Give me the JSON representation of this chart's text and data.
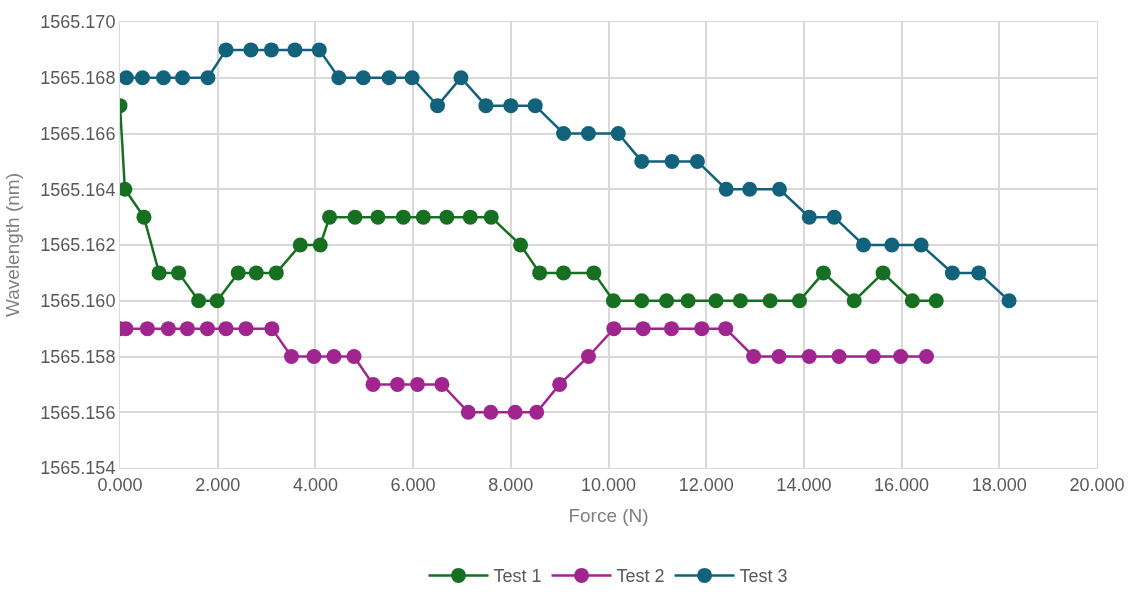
{
  "chart_data": {
    "type": "line",
    "xlabel": "Force (N)",
    "ylabel": "Wavelength (nm)",
    "xlim": [
      0,
      20
    ],
    "xticks": [
      {
        "value": 0,
        "label": "0.000"
      },
      {
        "value": 2,
        "label": "2.000"
      },
      {
        "value": 4,
        "label": "4.000"
      },
      {
        "value": 6,
        "label": "6.000"
      },
      {
        "value": 8,
        "label": "8.000"
      },
      {
        "value": 10,
        "label": "10.000"
      },
      {
        "value": 12,
        "label": "12.000"
      },
      {
        "value": 14,
        "label": "14.000"
      },
      {
        "value": 16,
        "label": "16.000"
      },
      {
        "value": 18,
        "label": "18.000"
      },
      {
        "value": 20,
        "label": "20.000"
      }
    ],
    "ylim": [
      1565.154,
      1565.17
    ],
    "yticks": [
      {
        "value": 1565.154,
        "label": "1565.154"
      },
      {
        "value": 1565.156,
        "label": "1565.156"
      },
      {
        "value": 1565.158,
        "label": "1565.158"
      },
      {
        "value": 1565.16,
        "label": "1565.160"
      },
      {
        "value": 1565.162,
        "label": "1565.162"
      },
      {
        "value": 1565.164,
        "label": "1565.164"
      },
      {
        "value": 1565.166,
        "label": "1565.166"
      },
      {
        "value": 1565.168,
        "label": "1565.168"
      },
      {
        "value": 1565.17,
        "label": "1565.170"
      }
    ],
    "grid": true,
    "legend": "bottom",
    "marker": "circle",
    "line_style": "solid",
    "series": [
      {
        "name": "Test 1",
        "color": "#177021",
        "x": [
          0.0,
          0.1,
          0.49,
          0.8,
          1.2,
          1.61,
          1.99,
          2.42,
          2.79,
          3.2,
          3.69,
          4.1,
          4.29,
          4.81,
          5.28,
          5.8,
          6.21,
          6.69,
          7.17,
          7.6,
          8.2,
          8.59,
          9.08,
          9.7,
          10.1,
          10.68,
          11.19,
          11.63,
          12.2,
          12.7,
          13.31,
          13.91,
          14.4,
          15.03,
          15.62,
          16.22,
          16.71
        ],
        "values": [
          1565.167,
          1565.164,
          1565.163,
          1565.161,
          1565.161,
          1565.16,
          1565.16,
          1565.161,
          1565.161,
          1565.161,
          1565.162,
          1565.162,
          1565.163,
          1565.163,
          1565.163,
          1565.163,
          1565.163,
          1565.163,
          1565.163,
          1565.163,
          1565.162,
          1565.161,
          1565.161,
          1565.161,
          1565.16,
          1565.16,
          1565.16,
          1565.16,
          1565.16,
          1565.16,
          1565.16,
          1565.16,
          1565.161,
          1565.16,
          1565.161,
          1565.16,
          1565.16
        ]
      },
      {
        "name": "Test 2",
        "color": "#a1258f",
        "x": [
          0.0,
          0.12,
          0.56,
          0.99,
          1.38,
          1.79,
          2.17,
          2.58,
          3.11,
          3.51,
          3.97,
          4.38,
          4.79,
          5.18,
          5.68,
          6.09,
          6.59,
          7.13,
          7.59,
          8.09,
          8.53,
          9.0,
          9.59,
          10.11,
          10.71,
          11.29,
          11.91,
          12.4,
          12.97,
          13.49,
          14.11,
          14.72,
          15.42,
          15.98,
          16.51
        ],
        "values": [
          1565.159,
          1565.159,
          1565.159,
          1565.159,
          1565.159,
          1565.159,
          1565.159,
          1565.159,
          1565.159,
          1565.158,
          1565.158,
          1565.158,
          1565.158,
          1565.157,
          1565.157,
          1565.157,
          1565.157,
          1565.156,
          1565.156,
          1565.156,
          1565.156,
          1565.157,
          1565.158,
          1565.159,
          1565.159,
          1565.159,
          1565.159,
          1565.159,
          1565.158,
          1565.158,
          1565.158,
          1565.158,
          1565.158,
          1565.158,
          1565.158
        ]
      },
      {
        "name": "Test 3",
        "color": "#13627c",
        "x": [
          0.13,
          0.46,
          0.89,
          1.28,
          1.8,
          2.17,
          2.68,
          3.1,
          3.58,
          4.08,
          4.48,
          4.98,
          5.51,
          5.98,
          6.5,
          6.98,
          7.49,
          8.0,
          8.5,
          9.08,
          9.59,
          10.2,
          10.68,
          11.3,
          11.82,
          12.41,
          12.89,
          13.5,
          14.11,
          14.62,
          15.22,
          15.8,
          16.4,
          17.04,
          17.58,
          18.2
        ],
        "values": [
          1565.168,
          1565.168,
          1565.168,
          1565.168,
          1565.168,
          1565.169,
          1565.169,
          1565.169,
          1565.169,
          1565.169,
          1565.168,
          1565.168,
          1565.168,
          1565.168,
          1565.167,
          1565.168,
          1565.167,
          1565.167,
          1565.167,
          1565.166,
          1565.166,
          1565.166,
          1565.165,
          1565.165,
          1565.165,
          1565.164,
          1565.164,
          1565.164,
          1565.163,
          1565.163,
          1565.162,
          1565.162,
          1565.162,
          1565.161,
          1565.161,
          1565.16
        ]
      }
    ]
  }
}
